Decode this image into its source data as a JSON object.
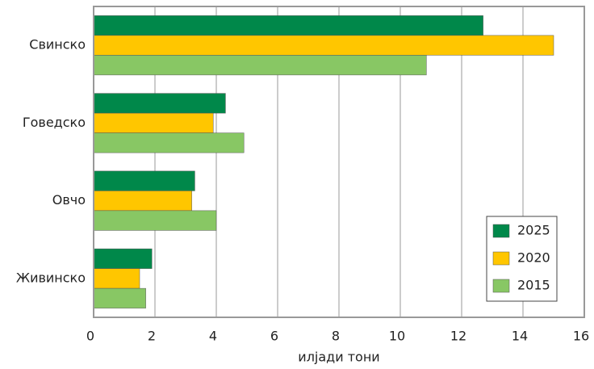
{
  "chart_data": {
    "type": "hbar",
    "xlabel": "илјади тони",
    "categories": [
      "Свинско",
      "Говедско",
      "Овчо",
      "Живинско"
    ],
    "series": [
      {
        "name": "2025",
        "color": "#00884a",
        "values": [
          12.7,
          4.3,
          3.3,
          1.9
        ]
      },
      {
        "name": "2020",
        "color": "#ffc600",
        "values": [
          15.0,
          3.9,
          3.2,
          1.5
        ]
      },
      {
        "name": "2015",
        "color": "#88c764",
        "values": [
          10.85,
          4.9,
          4.0,
          1.7
        ]
      }
    ],
    "xlim": [
      0,
      16
    ],
    "xticks": [
      0,
      2,
      4,
      6,
      8,
      10,
      12,
      14,
      16
    ],
    "grid": true,
    "legend": "lower right"
  }
}
